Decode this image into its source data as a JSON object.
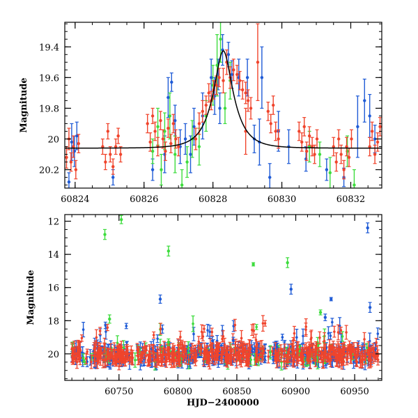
{
  "colors": {
    "blue": "#1f5bd6",
    "green": "#3ddc3d",
    "red": "#f0442c",
    "model": "#000000",
    "axes": "#000000"
  },
  "chart_data": [
    {
      "type": "scatter",
      "subtype": "light-curve-zoom",
      "xlim": [
        60823.7,
        60832.9
      ],
      "ylim": [
        20.32,
        19.24
      ],
      "y_inverted": true,
      "xlabel": "",
      "ylabel": "Magnitude",
      "xticks": [
        60824,
        60826,
        60828,
        60830,
        60832
      ],
      "xtick_labels": [
        "60824",
        "60826",
        "60828",
        "60830",
        "60832"
      ],
      "yticks": [
        19.4,
        19.6,
        19.8,
        20,
        20.2
      ],
      "ytick_labels": [
        "19.4",
        "19.6",
        "19.8",
        "20",
        "20.2"
      ],
      "model": {
        "name": "Paczynski fit",
        "t0": 60828.3,
        "tE": 0.55,
        "u0": 0.4,
        "baseline": 20.06,
        "t_range": [
          60823.7,
          60832.9
        ]
      },
      "series": [
        {
          "name": "blue",
          "color": "#1f5bd6",
          "points": [
            [
              60823.82,
              20.28,
              0.06
            ],
            [
              60823.9,
              20.02,
              0.12
            ],
            [
              60823.98,
              20.08,
              0.1
            ],
            [
              60824.05,
              19.98,
              0.09
            ],
            [
              60825.1,
              20.25,
              0.05
            ],
            [
              60826.25,
              20.2,
              0.07
            ],
            [
              60826.6,
              20.1,
              0.12
            ],
            [
              60826.7,
              19.73,
              0.13
            ],
            [
              60826.8,
              19.63,
              0.06
            ],
            [
              60826.9,
              19.88,
              0.1
            ],
            [
              60827.05,
              20.05,
              0.11
            ],
            [
              60827.2,
              20.0,
              0.1
            ],
            [
              60827.35,
              20.1,
              0.12
            ],
            [
              60827.45,
              19.92,
              0.12
            ],
            [
              60827.7,
              19.85,
              0.15
            ],
            [
              60827.95,
              19.6,
              0.12
            ],
            [
              60828.05,
              19.72,
              0.12
            ],
            [
              60828.15,
              19.58,
              0.1
            ],
            [
              60828.2,
              19.8,
              0.1
            ],
            [
              60828.28,
              19.42,
              0.1
            ],
            [
              60828.45,
              19.45,
              0.08
            ],
            [
              60828.55,
              19.58,
              0.09
            ],
            [
              60828.75,
              19.6,
              0.12
            ],
            [
              60829.0,
              19.6,
              0.12
            ],
            [
              60829.2,
              20.0,
              0.09
            ],
            [
              60829.35,
              20.02,
              0.15
            ],
            [
              60829.42,
              19.6,
              0.2
            ],
            [
              60829.65,
              20.25,
              0.09
            ],
            [
              60829.9,
              19.95,
              0.13
            ],
            [
              60830.2,
              20.05,
              0.11
            ],
            [
              60830.7,
              20.13,
              0.08
            ],
            [
              60831.3,
              20.2,
              0.07
            ],
            [
              60831.8,
              20.25,
              0.06
            ],
            [
              60832.2,
              19.92,
              0.2
            ],
            [
              60832.4,
              19.75,
              0.14
            ],
            [
              60832.55,
              19.85,
              0.14
            ],
            [
              60832.7,
              20.0,
              0.09
            ]
          ]
        },
        {
          "name": "green",
          "color": "#3ddc3d",
          "points": [
            [
              60826.25,
              20.08,
              0.08
            ],
            [
              60826.4,
              19.92,
              0.12
            ],
            [
              60826.5,
              20.2,
              0.1
            ],
            [
              60826.6,
              19.95,
              0.12
            ],
            [
              60826.75,
              19.85,
              0.15
            ],
            [
              60826.9,
              20.1,
              0.12
            ],
            [
              60827.1,
              20.3,
              0.1
            ],
            [
              60827.25,
              20.15,
              0.1
            ],
            [
              60827.4,
              20.0,
              0.12
            ],
            [
              60827.6,
              20.05,
              0.12
            ],
            [
              60827.8,
              19.85,
              0.1
            ],
            [
              60828.0,
              19.65,
              0.13
            ],
            [
              60828.12,
              19.52,
              0.2
            ],
            [
              60828.22,
              19.35,
              0.15
            ],
            [
              60828.35,
              19.8,
              0.1
            ],
            [
              60828.5,
              19.62,
              0.12
            ],
            [
              60830.8,
              20.05,
              0.1
            ],
            [
              60831.1,
              20.1,
              0.08
            ],
            [
              60831.4,
              20.22,
              0.1
            ],
            [
              60831.9,
              20.08,
              0.1
            ],
            [
              60832.1,
              20.3,
              0.1
            ]
          ]
        },
        {
          "name": "red",
          "color": "#f0442c",
          "points": [
            [
              60823.75,
              20.12,
              0.07
            ],
            [
              60823.82,
              20.0,
              0.07
            ],
            [
              60823.88,
              20.15,
              0.06
            ],
            [
              60823.95,
              20.05,
              0.07
            ],
            [
              60824.02,
              20.2,
              0.06
            ],
            [
              60824.1,
              20.03,
              0.06
            ],
            [
              60824.8,
              20.05,
              0.05
            ],
            [
              60824.88,
              20.15,
              0.05
            ],
            [
              60824.95,
              19.95,
              0.05
            ],
            [
              60825.02,
              20.1,
              0.05
            ],
            [
              60825.1,
              20.18,
              0.05
            ],
            [
              60825.18,
              20.05,
              0.05
            ],
            [
              60825.25,
              19.98,
              0.05
            ],
            [
              60825.32,
              20.1,
              0.05
            ],
            [
              60826.1,
              19.9,
              0.06
            ],
            [
              60826.18,
              20.02,
              0.06
            ],
            [
              60826.25,
              19.85,
              0.05
            ],
            [
              60826.32,
              19.95,
              0.06
            ],
            [
              60826.4,
              20.05,
              0.06
            ],
            [
              60826.48,
              19.88,
              0.06
            ],
            [
              60826.55,
              20.0,
              0.06
            ],
            [
              60826.62,
              20.08,
              0.06
            ],
            [
              60826.7,
              19.93,
              0.06
            ],
            [
              60826.78,
              20.03,
              0.06
            ],
            [
              60826.85,
              19.9,
              0.06
            ],
            [
              60826.92,
              20.0,
              0.06
            ],
            [
              60827.0,
              20.05,
              0.06
            ],
            [
              60827.5,
              20.0,
              0.07
            ],
            [
              60827.6,
              19.9,
              0.07
            ],
            [
              60827.7,
              19.82,
              0.07
            ],
            [
              60827.8,
              19.78,
              0.06
            ],
            [
              60827.88,
              19.7,
              0.06
            ],
            [
              60827.95,
              19.75,
              0.06
            ],
            [
              60828.02,
              19.68,
              0.06
            ],
            [
              60828.1,
              19.65,
              0.06
            ],
            [
              60828.18,
              19.6,
              0.06
            ],
            [
              60828.3,
              19.62,
              0.08
            ],
            [
              60828.4,
              19.5,
              0.08
            ],
            [
              60828.5,
              19.6,
              0.07
            ],
            [
              60828.6,
              19.55,
              0.07
            ],
            [
              60828.7,
              19.58,
              0.06
            ],
            [
              60828.78,
              19.62,
              0.06
            ],
            [
              60828.86,
              19.68,
              0.06
            ],
            [
              60828.95,
              19.7,
              0.07
            ],
            [
              60829.02,
              19.75,
              0.07
            ],
            [
              60829.1,
              19.8,
              0.07
            ],
            [
              60828.95,
              19.95,
              0.15
            ],
            [
              60829.3,
              19.5,
              0.25
            ],
            [
              60829.6,
              19.82,
              0.06
            ],
            [
              60829.68,
              19.9,
              0.06
            ],
            [
              60829.75,
              19.78,
              0.06
            ],
            [
              60829.82,
              19.95,
              0.06
            ],
            [
              60829.9,
              20.0,
              0.06
            ],
            [
              60830.5,
              19.95,
              0.06
            ],
            [
              60830.58,
              20.02,
              0.06
            ],
            [
              60830.65,
              19.92,
              0.06
            ],
            [
              60830.72,
              20.08,
              0.06
            ],
            [
              60830.8,
              19.98,
              0.06
            ],
            [
              60830.88,
              20.05,
              0.06
            ],
            [
              60830.95,
              20.1,
              0.06
            ],
            [
              60831.02,
              20.0,
              0.06
            ],
            [
              60831.5,
              20.05,
              0.06
            ],
            [
              60831.58,
              20.15,
              0.06
            ],
            [
              60831.65,
              20.0,
              0.06
            ],
            [
              60831.72,
              20.1,
              0.06
            ],
            [
              60831.8,
              20.2,
              0.06
            ],
            [
              60831.88,
              20.05,
              0.06
            ],
            [
              60831.95,
              20.12,
              0.06
            ],
            [
              60832.02,
              20.0,
              0.06
            ],
            [
              60832.55,
              20.05,
              0.06
            ],
            [
              60832.62,
              19.95,
              0.06
            ],
            [
              60832.7,
              20.1,
              0.06
            ],
            [
              60832.78,
              20.02,
              0.06
            ],
            [
              60832.85,
              19.92,
              0.06
            ],
            [
              60832.92,
              20.08,
              0.06
            ]
          ]
        }
      ]
    },
    {
      "type": "scatter",
      "subtype": "light-curve-full",
      "xlim": [
        60704,
        60973
      ],
      "ylim": [
        21.6,
        11.6
      ],
      "y_inverted": true,
      "xlabel": "HJD−2400000",
      "ylabel": "Magnitude",
      "xticks": [
        60750,
        60800,
        60850,
        60900,
        60950
      ],
      "xtick_labels": [
        "60750",
        "60800",
        "60850",
        "60900",
        "60950"
      ],
      "yticks": [
        12,
        14,
        16,
        18,
        20
      ],
      "ytick_labels": [
        "12",
        "14",
        "16",
        "18",
        "20"
      ],
      "baseline": {
        "y": 20.05,
        "scatter": 0.45,
        "x_range": [
          60710,
          60970
        ]
      },
      "outliers": [
        {
          "series": "green",
          "points": [
            [
              60738,
              12.8,
              0.3
            ],
            [
              60752,
              11.9,
              0.25
            ],
            [
              60742,
              17.9,
              0.25
            ],
            [
              60792,
              13.8,
              0.3
            ],
            [
              60864,
              14.6,
              0.1
            ],
            [
              60893,
              14.5,
              0.3
            ],
            [
              60921,
              17.5,
              0.15
            ],
            [
              60792,
              19.3,
              0.2
            ]
          ]
        },
        {
          "series": "blue",
          "points": [
            [
              60785,
              16.7,
              0.25
            ],
            [
              60896,
              16.1,
              0.3
            ],
            [
              60930,
              16.7,
              0.1
            ],
            [
              60925,
              17.8,
              0.2
            ],
            [
              60961,
              12.4,
              0.3
            ],
            [
              60963,
              17.2,
              0.3
            ],
            [
              60847,
              19.2,
              0.2
            ]
          ]
        }
      ],
      "series_names": [
        "blue",
        "green",
        "red"
      ]
    }
  ]
}
